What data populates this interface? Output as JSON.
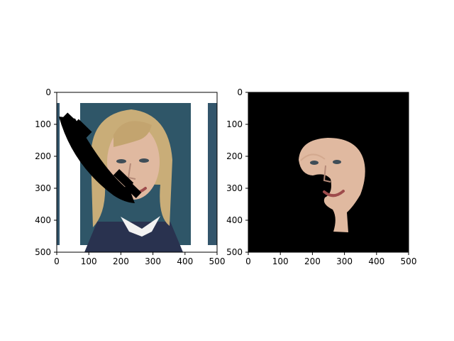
{
  "chart_data": [
    {
      "type": "image",
      "title": "",
      "xlabel": "",
      "ylabel": "",
      "xlim": [
        0,
        500
      ],
      "ylim": [
        500,
        0
      ],
      "x_ticks": [
        0,
        100,
        200,
        300,
        400,
        500
      ],
      "y_ticks": [
        0,
        100,
        200,
        300,
        400,
        500
      ],
      "content": "face photo with black occlusion mask"
    },
    {
      "type": "image",
      "title": "",
      "xlabel": "",
      "ylabel": "",
      "xlim": [
        0,
        500
      ],
      "ylim": [
        500,
        0
      ],
      "x_ticks": [
        0,
        100,
        200,
        300,
        400,
        500
      ],
      "y_ticks": [
        0,
        100,
        200,
        300,
        400,
        500
      ],
      "content": "segmented face region on black background"
    }
  ],
  "colors": {
    "background": "#ffffff",
    "mask": "#000000",
    "poster_blue": "#2f5668",
    "hair": "#c9ad78",
    "skin": "#e0b9a0",
    "shirt": "#2a3558"
  }
}
